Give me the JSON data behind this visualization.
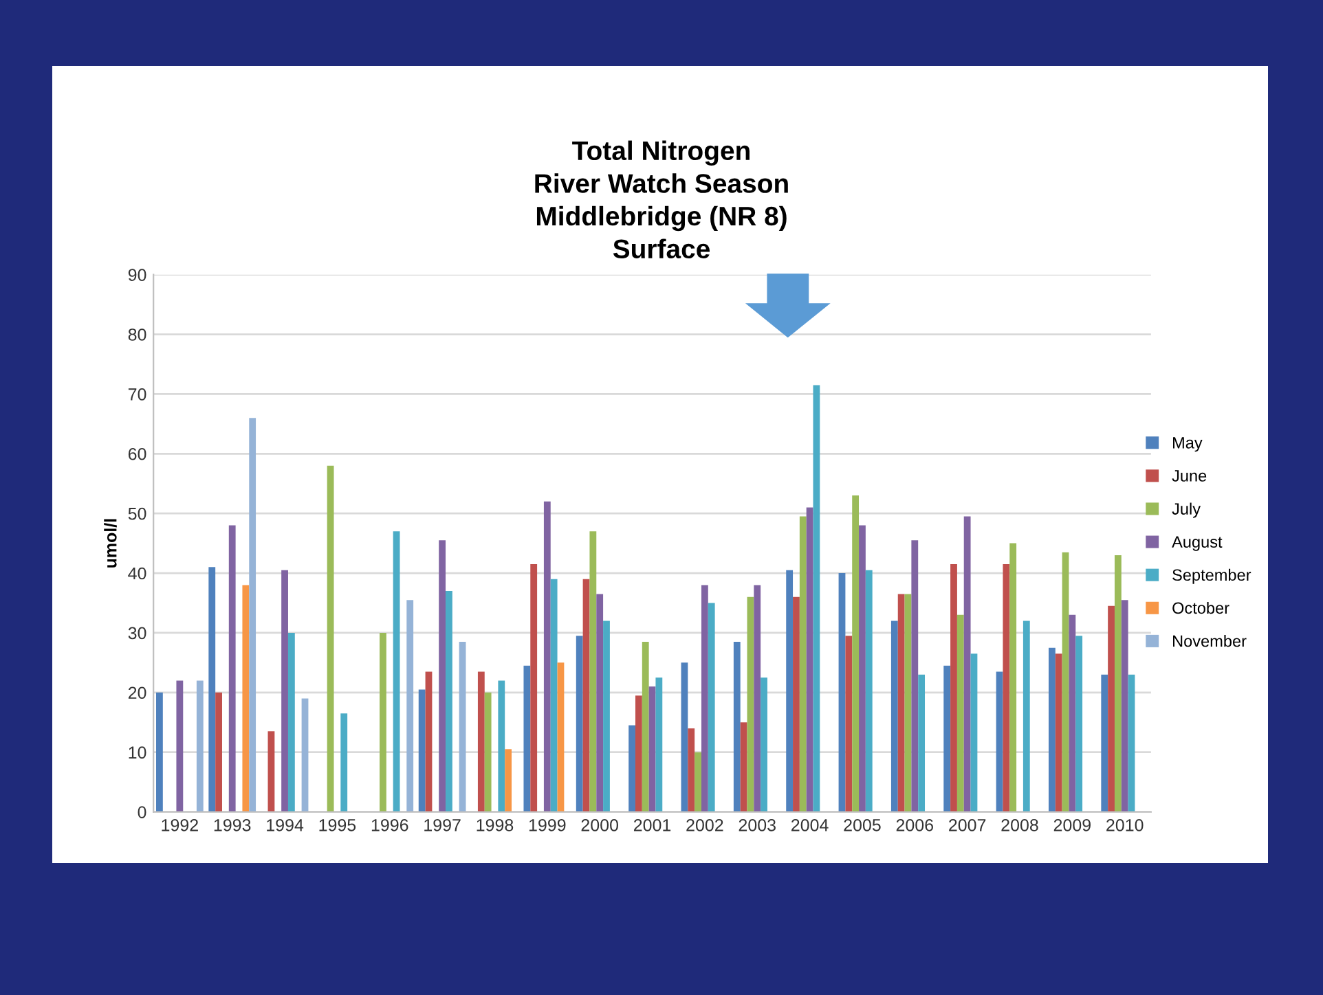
{
  "chart_data": {
    "type": "bar",
    "title": "Total Nitrogen\nRiver Watch Season\nMiddlebridge (NR 8)\nSurface",
    "ylabel": "umol/l",
    "categories": [
      "1992",
      "1993",
      "1994",
      "1995",
      "1996",
      "1997",
      "1998",
      "1999",
      "2000",
      "2001",
      "2002",
      "2003",
      "2004",
      "2005",
      "2006",
      "2007",
      "2008",
      "2009",
      "2010"
    ],
    "series": [
      {
        "name": "May",
        "color": "#4f81bd",
        "values": [
          20,
          41,
          null,
          null,
          null,
          20.5,
          null,
          24.5,
          29.5,
          14.5,
          25,
          28.5,
          40.5,
          40,
          32,
          24.5,
          23.5,
          27.5,
          23
        ]
      },
      {
        "name": "June",
        "color": "#c0504d",
        "values": [
          null,
          20,
          13.5,
          null,
          null,
          23.5,
          23.5,
          41.5,
          39,
          19.5,
          14,
          15,
          36,
          29.5,
          36.5,
          41.5,
          41.5,
          26.5,
          34.5
        ]
      },
      {
        "name": "July",
        "color": "#9bbb59",
        "values": [
          null,
          null,
          null,
          58,
          30,
          null,
          20,
          null,
          47,
          28.5,
          10,
          36,
          49.5,
          53,
          36.5,
          33,
          45,
          43.5,
          43
        ]
      },
      {
        "name": "August",
        "color": "#8064a2",
        "values": [
          22,
          48,
          40.5,
          null,
          null,
          45.5,
          null,
          52,
          36.5,
          21,
          38,
          38,
          51,
          48,
          45.5,
          49.5,
          null,
          33,
          35.5
        ]
      },
      {
        "name": "September",
        "color": "#4bacc6",
        "values": [
          null,
          null,
          30,
          16.5,
          47,
          37,
          22,
          39,
          32,
          22.5,
          35,
          22.5,
          71.5,
          40.5,
          23,
          26.5,
          32,
          29.5,
          23
        ]
      },
      {
        "name": "October",
        "color": "#f79646",
        "values": [
          null,
          38,
          null,
          null,
          null,
          null,
          10.5,
          25,
          null,
          null,
          null,
          null,
          null,
          null,
          null,
          null,
          null,
          null,
          null
        ]
      },
      {
        "name": "November",
        "color": "#95b3d7",
        "values": [
          22,
          66,
          19,
          null,
          35.5,
          28.5,
          null,
          null,
          null,
          null,
          null,
          null,
          null,
          null,
          null,
          null,
          null,
          null,
          null
        ]
      }
    ],
    "ylim": [
      0,
      90
    ],
    "yticks": [
      0,
      10,
      20,
      30,
      40,
      50,
      60,
      70,
      80,
      90
    ],
    "grid": "y",
    "legend": "right"
  }
}
